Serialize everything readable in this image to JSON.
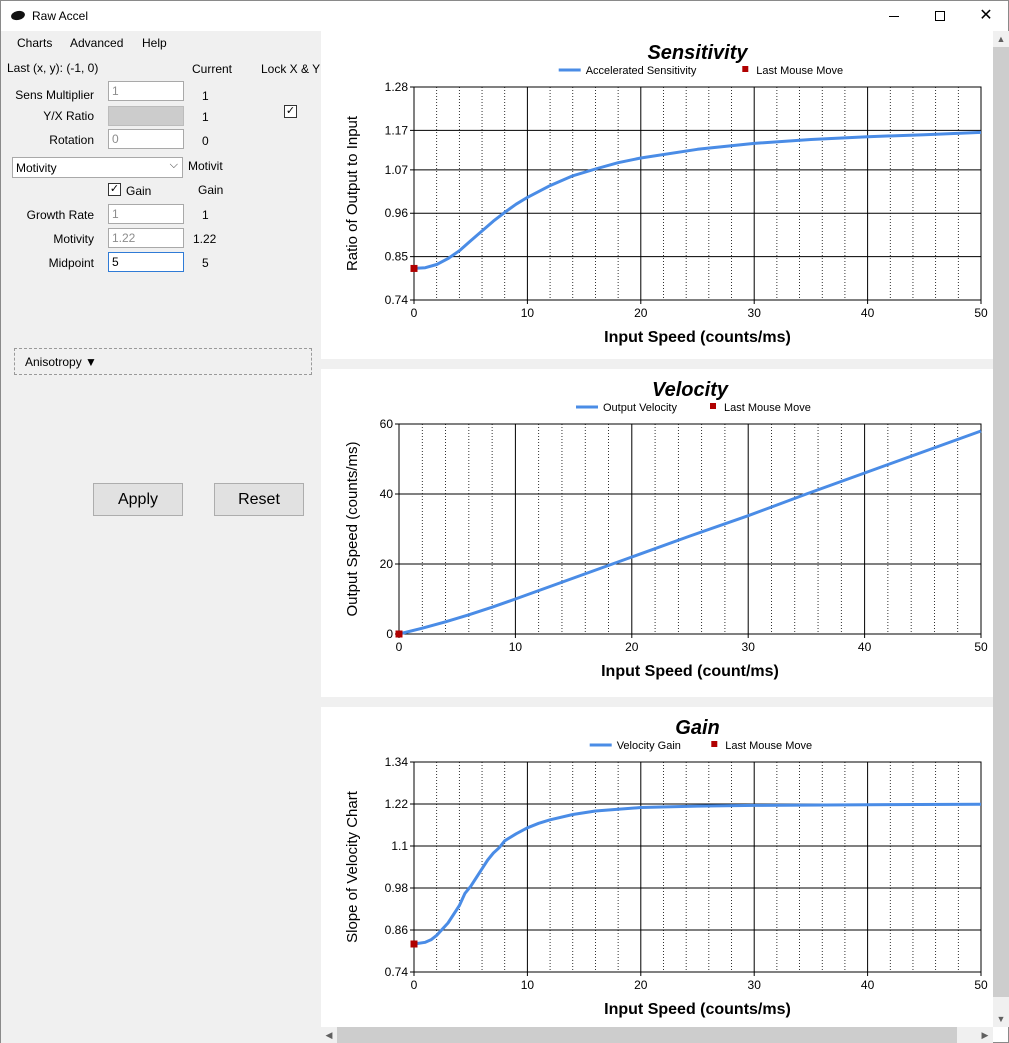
{
  "window": {
    "title": "Raw Accel"
  },
  "menu": {
    "items": [
      "Charts",
      "Advanced",
      "Help"
    ]
  },
  "settings": {
    "last_move": "Last (x, y): (-1, 0)",
    "current_header": "Current",
    "lock_label": "Lock X & Y",
    "lock_checked": "✓",
    "sens_label": "Sens Multiplier",
    "sens_value": "1",
    "sens_current": "1",
    "yx_label": "Y/X Ratio",
    "yx_current": "1",
    "rotation_label": "Rotation",
    "rotation_value": "0",
    "rotation_current": "0",
    "accel_type": "Motivity",
    "accel_type_current": "Motivit",
    "gain_label": "Gain",
    "gain_checked": "✓",
    "gain_current": "Gain",
    "growth_label": "Growth Rate",
    "growth_value": "1",
    "growth_current": "1",
    "motivity_label": "Motivity",
    "motivity_value": "1.22",
    "motivity_current": "1.22",
    "midpoint_label": "Midpoint",
    "midpoint_value": "5",
    "midpoint_current": "5",
    "anisotropy_label": "Anisotropy ▼",
    "apply_label": "Apply",
    "reset_label": "Reset"
  },
  "colors": {
    "series": "#4a8ce6",
    "last_move": "#b00000",
    "grid": "#000000",
    "panel_bg": "#f0f0f0"
  },
  "chart_data": [
    {
      "type": "line",
      "title": "Sensitivity",
      "xlabel": "Input Speed (counts/ms)",
      "ylabel": "Ratio of Output to Input",
      "xlim": [
        0,
        50
      ],
      "ylim": [
        0.74,
        1.28
      ],
      "xticks": [
        "0",
        "10",
        "20",
        "30",
        "40",
        "50"
      ],
      "yticks": [
        "0.74",
        "0.85",
        "0.96",
        "1.07",
        "1.17",
        "1.28"
      ],
      "legend": "top-center",
      "series": [
        {
          "name": "Accelerated Sensitivity",
          "x": [
            0,
            1,
            2,
            3,
            4,
            5,
            6,
            7,
            8,
            9,
            10,
            12,
            14,
            16,
            18,
            20,
            25,
            30,
            35,
            40,
            45,
            50
          ],
          "y": [
            0.82,
            0.822,
            0.83,
            0.845,
            0.865,
            0.89,
            0.915,
            0.94,
            0.962,
            0.983,
            1.0,
            1.03,
            1.055,
            1.072,
            1.088,
            1.1,
            1.122,
            1.137,
            1.147,
            1.154,
            1.159,
            1.165
          ]
        }
      ],
      "points": [
        {
          "name": "Last Mouse Move",
          "x": [
            0
          ],
          "y": [
            0.82
          ]
        }
      ]
    },
    {
      "type": "line",
      "title": "Velocity",
      "xlabel": "Input Speed (count/ms)",
      "ylabel": "Output Speed (counts/ms)",
      "xlim": [
        0,
        50
      ],
      "ylim": [
        0,
        60
      ],
      "xticks": [
        "0",
        "10",
        "20",
        "30",
        "40",
        "50"
      ],
      "yticks": [
        "0",
        "20",
        "40",
        "60"
      ],
      "legend": "top-center",
      "series": [
        {
          "name": "Output Velocity",
          "x": [
            0,
            2,
            4,
            6,
            8,
            10,
            15,
            20,
            25,
            30,
            35,
            40,
            45,
            50
          ],
          "y": [
            0,
            1.65,
            3.5,
            5.5,
            7.65,
            10.0,
            16.0,
            22.0,
            28.0,
            33.8,
            40.0,
            46.0,
            52.0,
            58.0
          ]
        }
      ],
      "points": [
        {
          "name": "Last Mouse Move",
          "x": [
            0
          ],
          "y": [
            0
          ]
        }
      ]
    },
    {
      "type": "line",
      "title": "Gain",
      "xlabel": "Input Speed (counts/ms)",
      "ylabel": "Slope of Velocity Chart",
      "xlim": [
        0,
        50
      ],
      "ylim": [
        0.74,
        1.34
      ],
      "xticks": [
        "0",
        "10",
        "20",
        "30",
        "40",
        "50"
      ],
      "yticks": [
        "0.74",
        "0.86",
        "0.98",
        "1.1",
        "1.22",
        "1.34"
      ],
      "legend": "top-center",
      "series": [
        {
          "name": "Velocity Gain",
          "x": [
            0,
            1,
            1.5,
            2,
            3,
            4,
            4.5,
            5,
            5.5,
            6,
            6.5,
            7,
            7.5,
            8,
            9,
            10,
            11,
            12,
            14,
            16,
            18,
            20,
            25,
            30,
            40,
            50
          ],
          "y": [
            0.82,
            0.825,
            0.832,
            0.845,
            0.88,
            0.93,
            0.965,
            0.985,
            1.01,
            1.035,
            1.06,
            1.08,
            1.095,
            1.115,
            1.135,
            1.152,
            1.165,
            1.175,
            1.19,
            1.2,
            1.205,
            1.21,
            1.214,
            1.216,
            1.218,
            1.219
          ]
        }
      ],
      "points": [
        {
          "name": "Last Mouse Move",
          "x": [
            0
          ],
          "y": [
            0.82
          ]
        }
      ]
    }
  ]
}
